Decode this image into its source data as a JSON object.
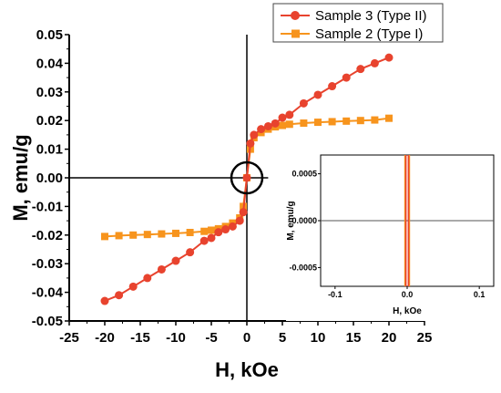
{
  "chart_data": {
    "type": "scatter",
    "title": "",
    "xlabel": "H, kOe",
    "ylabel": "M, emu/g",
    "xlim": [
      -25,
      25
    ],
    "ylim": [
      -0.05,
      0.05
    ],
    "x_ticks": [
      "-25",
      "-20",
      "-15",
      "-10",
      "-5",
      "0",
      "5",
      "10",
      "15",
      "20",
      "25"
    ],
    "y_ticks": [
      "-0.05",
      "-0.04",
      "-0.03",
      "-0.02",
      "-0.01",
      "0.00",
      "0.01",
      "0.02",
      "0.03",
      "0.04",
      "0.05"
    ],
    "grid": false,
    "legend_position": "top-right",
    "series": [
      {
        "name": "Sample 3 (Type II)",
        "color": "#e8432e",
        "marker": "circle",
        "x": [
          -20,
          -18,
          -16,
          -14,
          -12,
          -10,
          -8,
          -6,
          -5,
          -4,
          -3,
          -2,
          -1,
          -0.5,
          0,
          0.5,
          1,
          2,
          3,
          4,
          5,
          6,
          8,
          10,
          12,
          14,
          16,
          18,
          20
        ],
        "y": [
          -0.043,
          -0.041,
          -0.038,
          -0.035,
          -0.032,
          -0.029,
          -0.026,
          -0.022,
          -0.021,
          -0.019,
          -0.018,
          -0.017,
          -0.015,
          -0.012,
          0.0,
          0.012,
          0.015,
          0.017,
          0.018,
          0.019,
          0.021,
          0.022,
          0.026,
          0.029,
          0.032,
          0.035,
          0.038,
          0.04,
          0.042
        ]
      },
      {
        "name": "Sample 2 (Type I)",
        "color": "#f7941d",
        "marker": "square",
        "x": [
          -20,
          -18,
          -16,
          -14,
          -12,
          -10,
          -8,
          -6,
          -5,
          -4,
          -3,
          -2,
          -1,
          -0.5,
          0,
          0.5,
          1,
          2,
          3,
          4,
          5,
          6,
          8,
          10,
          12,
          14,
          16,
          18,
          20
        ],
        "y": [
          -0.0205,
          -0.0202,
          -0.02,
          -0.0198,
          -0.0196,
          -0.0194,
          -0.0191,
          -0.0187,
          -0.0183,
          -0.0178,
          -0.017,
          -0.0158,
          -0.014,
          -0.01,
          0.0,
          0.01,
          0.014,
          0.0158,
          0.017,
          0.0178,
          0.0183,
          0.0187,
          0.0191,
          0.0194,
          0.0196,
          0.0198,
          0.02,
          0.0202,
          0.0208
        ]
      }
    ],
    "inset": {
      "xlabel": "H, kOe",
      "ylabel": "M, emu/g",
      "xlim": [
        -0.12,
        0.12
      ],
      "ylim": [
        -0.0007,
        0.0007
      ],
      "x_ticks": [
        "-0.1",
        "0.0",
        "0.1"
      ],
      "y_ticks": [
        "-0.0005",
        "0.0000",
        "0.0005"
      ]
    }
  }
}
